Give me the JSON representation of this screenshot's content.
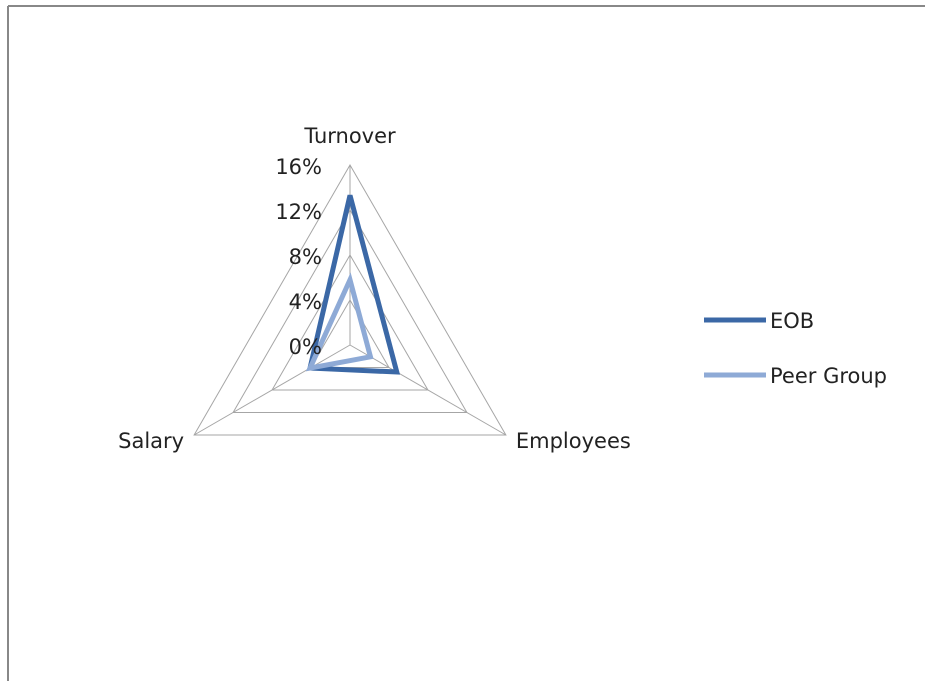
{
  "chart_data": {
    "type": "radar",
    "categories": [
      "Turnover",
      "Employees",
      "Salary"
    ],
    "series": [
      {
        "name": "EOB",
        "color": "#3b68a6",
        "values": [
          13.3,
          4.8,
          4.1
        ]
      },
      {
        "name": "Peer Group",
        "color": "#8eaad6",
        "values": [
          5.8,
          2.1,
          4.1
        ]
      }
    ],
    "ylim": [
      0,
      16
    ],
    "yticks": [
      {
        "value": 0,
        "label": "0%"
      },
      {
        "value": 4,
        "label": "4%"
      },
      {
        "value": 8,
        "label": "8%"
      },
      {
        "value": 12,
        "label": "12%"
      },
      {
        "value": 16,
        "label": "16%"
      }
    ],
    "grid": true,
    "legend": "right"
  }
}
